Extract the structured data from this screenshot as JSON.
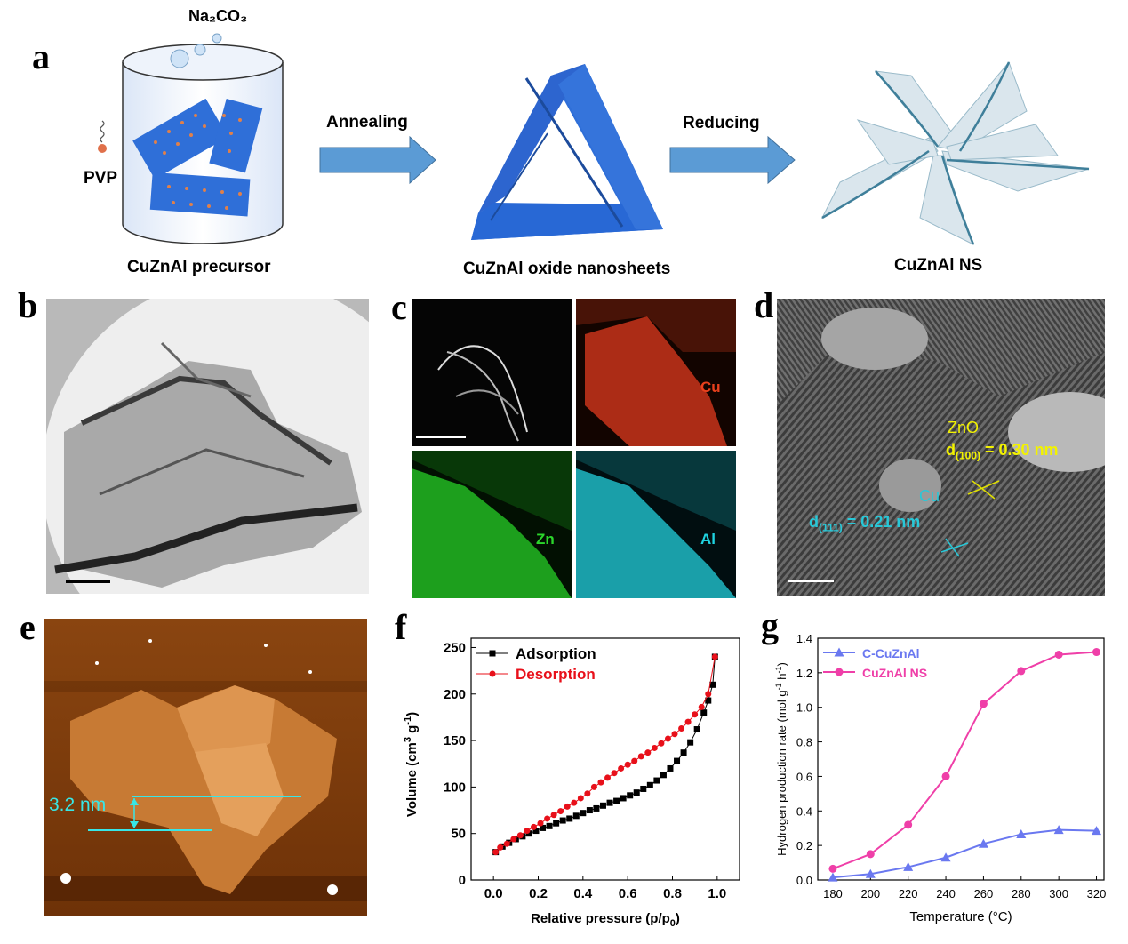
{
  "panels": {
    "a": {
      "label": "a",
      "na2co3": "Na₂CO₃",
      "pvp": "PVP",
      "precursor_caption": "CuZnAl precursor",
      "annealing": "Annealing",
      "oxide_caption": "CuZnAl oxide nanosheets",
      "reducing": "Reducing",
      "ns_caption": "CuZnAl NS"
    },
    "b": {
      "label": "b"
    },
    "c": {
      "label": "c",
      "maps": [
        "",
        "Cu",
        "Zn",
        "Al"
      ],
      "colors": [
        "#ffffff",
        "#e8401c",
        "#2bd62b",
        "#1fd3e0"
      ]
    },
    "d": {
      "label": "d",
      "zno": "ZnO",
      "zno_d": "d(100) = 0.30 nm",
      "zno_d_base": "d",
      "zno_d_sub": "(100)",
      "zno_d_val": " = 0.30 nm",
      "cu": "Cu",
      "cu_d_base": "d",
      "cu_d_sub": "(111)",
      "cu_d_val": " = 0.21 nm"
    },
    "e": {
      "label": "e",
      "height": "3.2 nm"
    },
    "f": {
      "label": "f"
    },
    "g": {
      "label": "g"
    }
  },
  "chart_data": [
    {
      "id": "f",
      "type": "scatter",
      "xlabel": "Relative pressure (p/p0)",
      "ylabel": "Volume (cm3 g-1)",
      "xlim": [
        -0.1,
        1.1
      ],
      "ylim": [
        0,
        260
      ],
      "xticks": [
        "0.0",
        "0.2",
        "0.4",
        "0.6",
        "0.8",
        "1.0"
      ],
      "yticks": [
        "0",
        "50",
        "100",
        "150",
        "200",
        "250"
      ],
      "legend_position": "top-left",
      "series": [
        {
          "name": "Adsorption",
          "color": "#000000",
          "marker": "square",
          "x": [
            0.01,
            0.04,
            0.07,
            0.1,
            0.13,
            0.16,
            0.19,
            0.22,
            0.25,
            0.28,
            0.31,
            0.34,
            0.37,
            0.4,
            0.43,
            0.46,
            0.49,
            0.52,
            0.55,
            0.58,
            0.61,
            0.64,
            0.67,
            0.7,
            0.73,
            0.76,
            0.79,
            0.82,
            0.85,
            0.88,
            0.91,
            0.94,
            0.96,
            0.98,
            0.99
          ],
          "y": [
            30,
            36,
            40,
            44,
            47,
            50,
            53,
            56,
            58,
            61,
            64,
            66,
            69,
            72,
            75,
            77,
            80,
            83,
            85,
            88,
            91,
            94,
            98,
            102,
            107,
            113,
            120,
            128,
            137,
            148,
            162,
            180,
            193,
            210,
            240
          ]
        },
        {
          "name": "Desorption",
          "color": "#e8101a",
          "marker": "circle",
          "x": [
            0.99,
            0.96,
            0.93,
            0.9,
            0.87,
            0.84,
            0.81,
            0.78,
            0.75,
            0.72,
            0.69,
            0.66,
            0.63,
            0.6,
            0.57,
            0.54,
            0.51,
            0.48,
            0.45,
            0.42,
            0.39,
            0.36,
            0.33,
            0.3,
            0.27,
            0.24,
            0.21,
            0.18,
            0.15,
            0.12,
            0.09,
            0.06,
            0.03,
            0.01
          ],
          "y": [
            240,
            200,
            186,
            178,
            170,
            163,
            157,
            152,
            147,
            142,
            137,
            133,
            128,
            124,
            120,
            115,
            110,
            105,
            100,
            93,
            88,
            83,
            79,
            74,
            70,
            66,
            61,
            57,
            53,
            48,
            44,
            39,
            35,
            30
          ]
        }
      ]
    },
    {
      "id": "g",
      "type": "line",
      "xlabel": "Temperature (°C)",
      "ylabel": "Hydrogen production rate (mol g-1 h-1)",
      "xlim": [
        172,
        324
      ],
      "ylim": [
        0,
        1.4
      ],
      "xticks": [
        "180",
        "200",
        "220",
        "240",
        "260",
        "280",
        "300",
        "320"
      ],
      "yticks": [
        "0.0",
        "0.2",
        "0.4",
        "0.6",
        "0.8",
        "1.0",
        "1.2",
        "1.4"
      ],
      "legend_position": "top-left",
      "series": [
        {
          "name": "C-CuZnAl",
          "color": "#6a78f0",
          "marker": "triangle",
          "x": [
            180,
            200,
            220,
            240,
            260,
            280,
            300,
            320
          ],
          "y": [
            0.015,
            0.035,
            0.075,
            0.13,
            0.21,
            0.265,
            0.29,
            0.285
          ]
        },
        {
          "name": "CuZnAl NS",
          "color": "#ef3fa8",
          "marker": "circle",
          "x": [
            180,
            200,
            220,
            240,
            260,
            280,
            300,
            320
          ],
          "y": [
            0.065,
            0.15,
            0.32,
            0.6,
            1.02,
            1.21,
            1.305,
            1.32
          ]
        }
      ]
    }
  ]
}
